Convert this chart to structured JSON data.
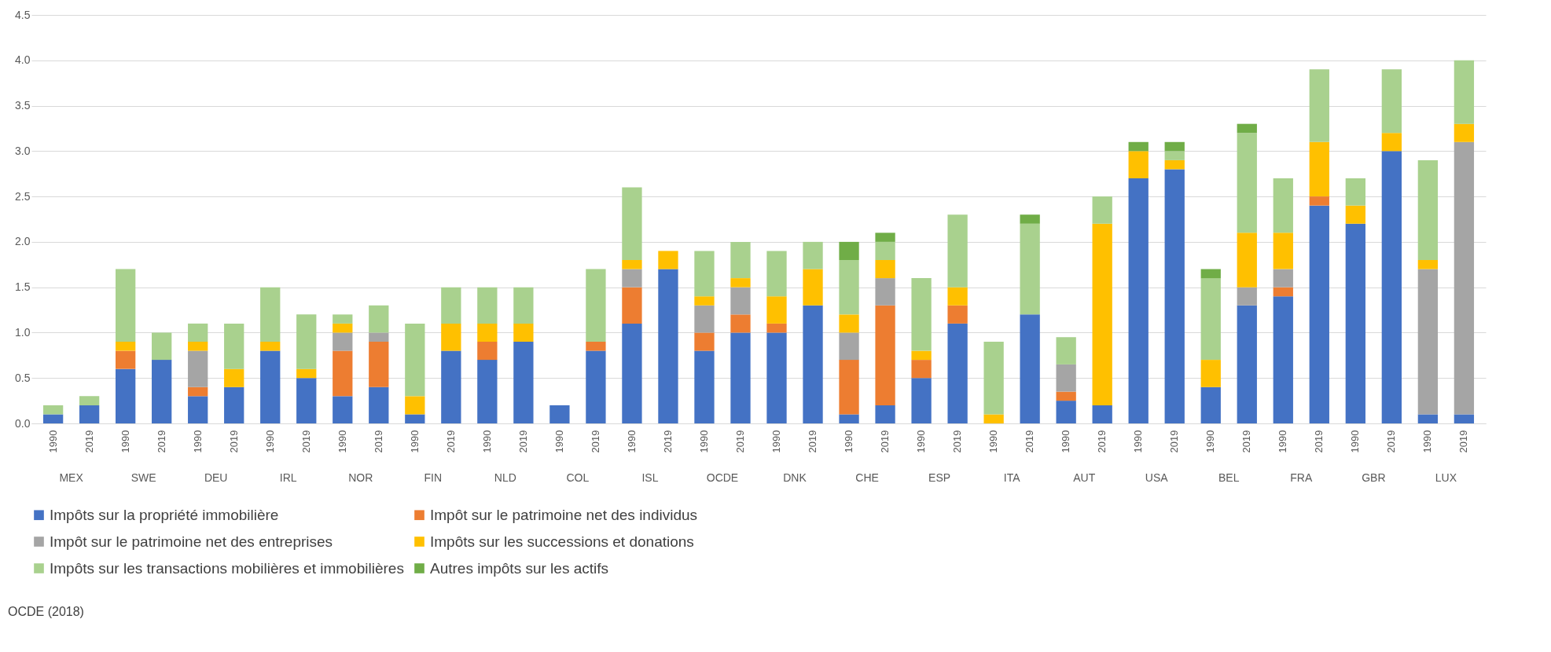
{
  "chart_data": {
    "type": "bar",
    "stacked": true,
    "categories": [
      "1990",
      "2019",
      "1990",
      "2019",
      "1990",
      "2019",
      "1990",
      "2019",
      "1990",
      "2019",
      "1990",
      "2019",
      "1990",
      "2019",
      "1990",
      "2019",
      "1990",
      "2019",
      "1990",
      "2019",
      "1990",
      "2019",
      "1990",
      "2019",
      "1990",
      "2019",
      "1990",
      "2019",
      "1990",
      "2019",
      "1990",
      "2019",
      "1990",
      "2019",
      "1990",
      "2019",
      "1990",
      "2019",
      "1990",
      "2019"
    ],
    "series": [
      {
        "name": "Impôts sur la propriété immobilière",
        "color": "#4472c4",
        "values": [
          0.1,
          0.2,
          0.6,
          0.7,
          0.3,
          0.4,
          0.8,
          0.5,
          0.3,
          0.4,
          0.1,
          0.8,
          0.7,
          0.9,
          0.2,
          0.8,
          1.1,
          1.7,
          0.8,
          1.0,
          1.0,
          1.3,
          0.1,
          0.2,
          0.5,
          1.1,
          null,
          1.2,
          0.25,
          0.2,
          2.7,
          2.8,
          0.4,
          1.3,
          1.4,
          2.4,
          2.2,
          3.0,
          0.1,
          0.1
        ]
      },
      {
        "name": "Impôt sur le patrimoine net des individus",
        "color": "#ed7d31",
        "values": [
          null,
          null,
          0.2,
          null,
          0.1,
          null,
          null,
          null,
          0.5,
          0.5,
          null,
          null,
          0.2,
          null,
          null,
          0.1,
          0.4,
          null,
          0.2,
          0.2,
          0.1,
          null,
          0.6,
          1.1,
          0.2,
          0.2,
          null,
          null,
          0.1,
          null,
          null,
          null,
          null,
          null,
          0.1,
          0.1,
          null,
          null,
          null,
          null
        ]
      },
      {
        "name": "Impôt sur le patrimoine net des entreprises",
        "color": "#a5a5a5",
        "values": [
          null,
          null,
          null,
          null,
          0.4,
          null,
          null,
          null,
          0.2,
          0.1,
          null,
          null,
          null,
          null,
          null,
          null,
          0.2,
          null,
          0.3,
          0.3,
          null,
          null,
          0.3,
          0.3,
          null,
          null,
          null,
          null,
          0.3,
          null,
          null,
          null,
          null,
          0.2,
          0.2,
          null,
          null,
          null,
          1.6,
          3.0
        ]
      },
      {
        "name": "Impôts sur les successions et donations",
        "color": "#ffc000",
        "values": [
          null,
          null,
          0.1,
          null,
          0.1,
          0.2,
          0.1,
          0.1,
          0.1,
          null,
          0.2,
          0.3,
          0.2,
          0.2,
          null,
          null,
          0.1,
          0.2,
          0.1,
          0.1,
          0.3,
          0.4,
          0.2,
          0.2,
          0.1,
          0.2,
          0.1,
          null,
          null,
          2.0,
          0.3,
          0.1,
          0.3,
          0.6,
          0.4,
          0.6,
          0.2,
          0.2,
          0.1,
          0.2
        ]
      },
      {
        "name": "Impôts sur les transactions mobilières et immobilières",
        "color": "#a9d18e",
        "values": [
          0.1,
          0.1,
          0.8,
          0.3,
          0.2,
          0.5,
          0.6,
          0.6,
          0.1,
          0.3,
          0.8,
          0.4,
          0.4,
          0.4,
          null,
          0.8,
          0.8,
          null,
          0.5,
          0.4,
          0.5,
          0.3,
          0.6,
          0.2,
          0.8,
          0.8,
          0.8,
          1.0,
          0.3,
          0.3,
          null,
          0.1,
          0.9,
          1.1,
          0.6,
          0.8,
          0.3,
          0.7,
          1.1,
          0.7
        ]
      },
      {
        "name": "Autres impôts sur les actifs",
        "color": "#70ad47",
        "values": [
          null,
          null,
          null,
          null,
          null,
          null,
          null,
          null,
          null,
          null,
          null,
          null,
          null,
          null,
          null,
          null,
          null,
          null,
          null,
          null,
          null,
          null,
          0.2,
          0.1,
          null,
          null,
          null,
          0.1,
          null,
          null,
          0.1,
          0.1,
          0.1,
          0.1,
          null,
          null,
          null,
          null,
          null,
          null
        ]
      }
    ],
    "ylim": [
      0,
      4.5
    ],
    "yticks": [
      {
        "value": 0,
        "label": "0.0"
      },
      0.5,
      {
        "value": 1,
        "label": "1.0"
      },
      1.5,
      {
        "value": 2,
        "label": "2.0"
      },
      2.5,
      {
        "value": 3,
        "label": "3.0"
      },
      3.5,
      {
        "value": 4,
        "label": "4.0"
      },
      4.5
    ],
    "grid": "y",
    "legend": "bottom",
    "annotations": [
      "MEX",
      "SWE",
      "DEU",
      "IRL",
      "NOR",
      "FIN",
      "NLD",
      "COL",
      "ISL",
      "OCDE",
      "DNK",
      "CHE",
      "ESP",
      "ITA",
      "AUT",
      "USA",
      "BEL",
      "FRA",
      "GBR",
      "LUX",
      "OCDE (2018)"
    ]
  }
}
